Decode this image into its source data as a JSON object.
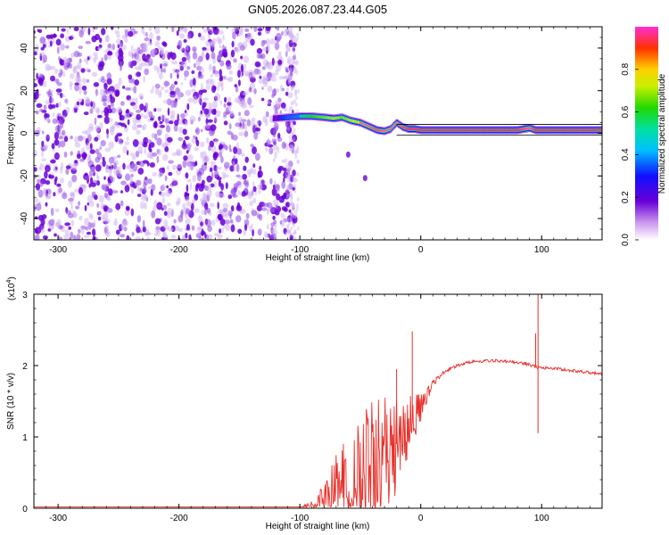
{
  "figure_title": "GN05.2026.087.23.44.G05",
  "chart_data": [
    {
      "type": "heatmap",
      "title": "GN05.2026.087.23.44.G05",
      "xlabel": "Height of straight line (km)",
      "ylabel": "Frequency (Hz)",
      "xlim": [
        -320,
        150
      ],
      "ylim": [
        -50,
        50
      ],
      "xticks": [
        -300,
        -200,
        -100,
        0,
        100
      ],
      "xtick_labels": [
        "-300",
        "-200",
        "-100",
        "0",
        "100"
      ],
      "yticks": [
        -40,
        -20,
        0,
        20,
        40
      ],
      "ytick_labels": [
        "-40",
        "-20",
        "0",
        "20",
        "40"
      ],
      "noise_region_x": [
        -320,
        -104
      ],
      "signal_track": {
        "x": [
          -122,
          -110,
          -100,
          -90,
          -80,
          -72,
          -65,
          -58,
          -50,
          -42,
          -36,
          -30,
          -25,
          -20,
          -15,
          -10,
          -5,
          0,
          20,
          40,
          60,
          80,
          90,
          95,
          100,
          110,
          120,
          150
        ],
        "freq_hz": [
          7,
          7.5,
          8,
          8,
          7.5,
          7,
          7.5,
          6,
          5,
          3,
          1.5,
          1,
          2,
          5,
          3,
          2,
          2,
          1.5,
          1.5,
          1.5,
          1.5,
          1.5,
          2.5,
          1.5,
          1.5,
          1.5,
          1.5,
          1.5
        ],
        "amplitude": [
          0.3,
          0.5,
          0.6,
          0.7,
          0.75,
          0.8,
          0.75,
          0.8,
          0.85,
          0.9,
          0.95,
          0.9,
          0.85,
          0.9,
          0.95,
          1,
          1,
          1,
          1,
          1,
          1,
          1,
          0.9,
          1,
          1,
          1,
          1,
          1
        ]
      },
      "outlier_points": [
        {
          "x": -60,
          "freq_hz": -10
        },
        {
          "x": -46,
          "freq_hz": -21
        }
      ],
      "colorbar": {
        "label": "Normalized spectral amplitude",
        "range": [
          0,
          1
        ],
        "ticks": [
          0.0,
          0.2,
          0.4,
          0.6,
          0.8
        ],
        "tick_labels": [
          "0.0",
          "0.2",
          "0.4",
          "0.6",
          "0.8"
        ]
      }
    },
    {
      "type": "line",
      "xlabel": "Height of straight line (km)",
      "ylabel": "SNR (10 * v/v)",
      "scale_label": "(x10",
      "scale_exponent": "4",
      "scale_close": ")",
      "xlim": [
        -320,
        150
      ],
      "ylim": [
        0,
        3
      ],
      "xticks": [
        -300,
        -200,
        -100,
        0,
        100
      ],
      "xtick_labels": [
        "-300",
        "-200",
        "-100",
        "0",
        "100"
      ],
      "yticks": [
        0,
        1,
        2,
        3
      ],
      "ytick_labels": [
        "0",
        "1",
        "2",
        "3"
      ],
      "series": [
        {
          "name": "SNR",
          "color": "#e8302a",
          "x": [
            -320,
            -200,
            -110,
            -100,
            -90,
            -80,
            -70,
            -60,
            -50,
            -40,
            -30,
            -20,
            -10,
            0,
            10,
            20,
            30,
            40,
            50,
            60,
            70,
            80,
            90,
            95,
            100,
            110,
            120,
            130,
            140,
            150
          ],
          "y": [
            0.02,
            0.02,
            0.02,
            0.02,
            0.05,
            0.15,
            0.3,
            0.45,
            0.55,
            0.65,
            0.75,
            0.9,
            1.1,
            1.4,
            1.75,
            1.92,
            2.0,
            2.05,
            2.06,
            2.07,
            2.06,
            2.04,
            2.02,
            1.98,
            1.97,
            1.96,
            1.94,
            1.92,
            1.9,
            1.88
          ],
          "noise_amplitude": [
            0,
            0,
            0,
            0,
            0.05,
            0.2,
            0.5,
            0.7,
            0.8,
            0.85,
            0.8,
            0.75,
            0.5,
            0.2,
            0.05,
            0.02,
            0.02,
            0.02,
            0.02,
            0.02,
            0.02,
            0.02,
            0.03,
            0.02,
            0.02,
            0.02,
            0.02,
            0.02,
            0.02,
            0.02
          ]
        }
      ],
      "spikes": [
        {
          "x": -7,
          "y": 2.48
        },
        {
          "x": -20,
          "y": 1.95
        },
        {
          "x": 97,
          "y": 3.0
        },
        {
          "x": 97,
          "y": 1.05
        },
        {
          "x": 95,
          "y": 2.45
        }
      ]
    }
  ]
}
